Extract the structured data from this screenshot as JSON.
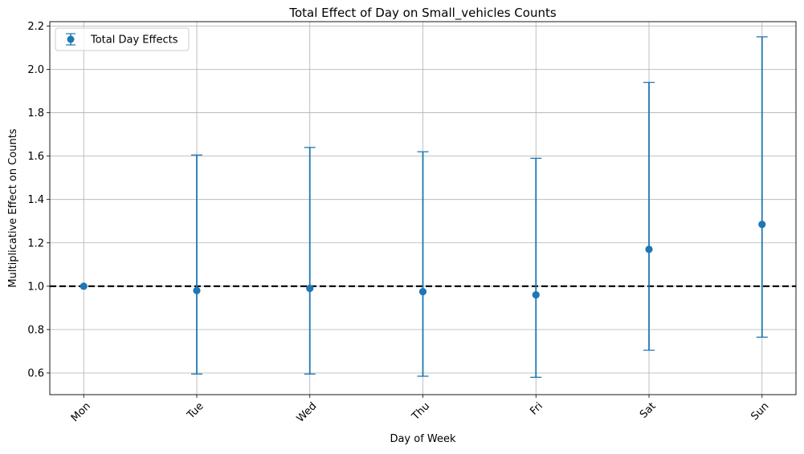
{
  "chart_data": {
    "type": "scatter",
    "title": "Total Effect of Day on Small_vehicles Counts",
    "xlabel": "Day of Week",
    "ylabel": "Multiplicative Effect on Counts",
    "categories": [
      "Mon",
      "Tue",
      "Wed",
      "Thu",
      "Fri",
      "Sat",
      "Sun"
    ],
    "series": [
      {
        "name": "Total Day Effects",
        "values": [
          1.0,
          0.98,
          0.99,
          0.975,
          0.96,
          1.17,
          1.285
        ],
        "lower": [
          1.0,
          0.595,
          0.595,
          0.585,
          0.58,
          0.705,
          0.765
        ],
        "upper": [
          1.0,
          1.605,
          1.64,
          1.62,
          1.59,
          1.94,
          2.15
        ],
        "color": "#1f77b4"
      }
    ],
    "reference_line": {
      "y": 1.0,
      "style": "dashed",
      "color": "#000000"
    },
    "ylim": [
      0.5,
      2.22
    ],
    "yticks": [
      "0.6",
      "0.8",
      "1.0",
      "1.2",
      "1.4",
      "1.6",
      "1.8",
      "2.0",
      "2.2"
    ],
    "grid": true,
    "legend_position": "top-left",
    "xtick_rotation": 45
  }
}
